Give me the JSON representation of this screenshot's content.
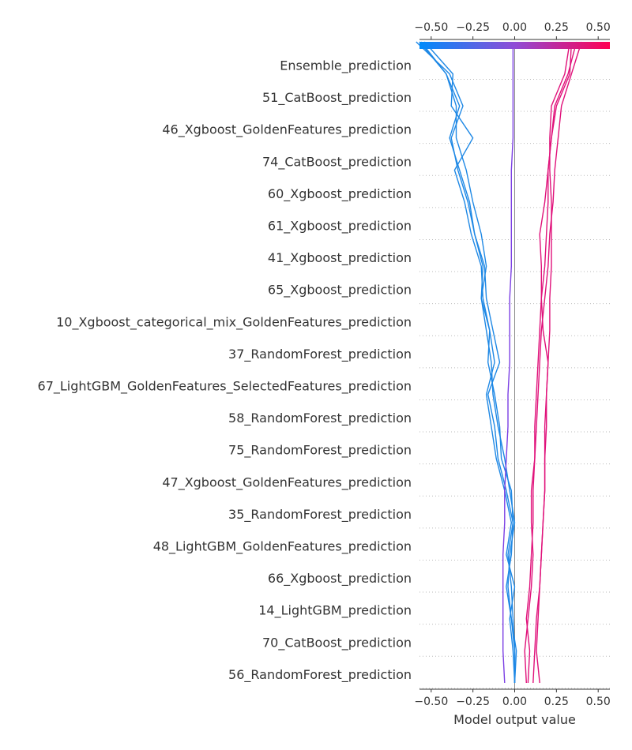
{
  "chart_data": {
    "type": "line",
    "subtype": "decision-plot",
    "xlabel": "Model output value",
    "xlim": [
      -0.57,
      0.57
    ],
    "ticks": [
      {
        "value": -0.5,
        "label": "−0.50"
      },
      {
        "value": -0.25,
        "label": "−0.25"
      },
      {
        "value": 0.0,
        "label": "0.00"
      },
      {
        "value": 0.25,
        "label": "0.25"
      },
      {
        "value": 0.5,
        "label": "0.50"
      }
    ],
    "base_value": 0.0,
    "colorbar": {
      "from": "#008bfb",
      "mid": "#8f4bd6",
      "to": "#ff0052"
    },
    "grid": "dotted horizontal",
    "features": [
      "Ensemble_prediction",
      "51_CatBoost_prediction",
      "46_Xgboost_GoldenFeatures_prediction",
      "74_CatBoost_prediction",
      "60_Xgboost_prediction",
      "61_Xgboost_prediction",
      "41_Xgboost_prediction",
      "65_Xgboost_prediction",
      "10_Xgboost_categorical_mix_GoldenFeatures_prediction",
      "37_RandomForest_prediction",
      "67_LightGBM_GoldenFeatures_SelectedFeatures_prediction",
      "58_RandomForest_prediction",
      "75_RandomForest_prediction",
      "47_Xgboost_GoldenFeatures_prediction",
      "35_RandomForest_prediction",
      "48_LightGBM_GoldenFeatures_prediction",
      "66_Xgboost_prediction",
      "14_LightGBM_prediction",
      "70_CatBoost_prediction",
      "56_RandomForest_prediction"
    ],
    "series": [
      {
        "color": "#1e88e5",
        "values": [
          0.0,
          0.01,
          -0.02,
          -0.05,
          -0.02,
          -0.01,
          -0.02,
          -0.08,
          -0.09,
          -0.12,
          -0.16,
          -0.15,
          -0.2,
          -0.17,
          -0.2,
          -0.25,
          -0.29,
          -0.35,
          -0.35,
          -0.41,
          -0.57
        ]
      },
      {
        "color": "#1e88e5",
        "values": [
          0.0,
          0.0,
          -0.02,
          -0.04,
          -0.03,
          0.0,
          -0.03,
          -0.06,
          -0.1,
          -0.13,
          -0.14,
          -0.17,
          -0.2,
          -0.19,
          -0.24,
          -0.27,
          -0.33,
          -0.39,
          -0.33,
          -0.41,
          -0.56
        ]
      },
      {
        "color": "#1e88e5",
        "values": [
          0.0,
          0.0,
          -0.01,
          -0.02,
          -0.04,
          -0.01,
          -0.05,
          -0.1,
          -0.12,
          -0.16,
          -0.09,
          -0.13,
          -0.17,
          -0.18,
          -0.24,
          -0.28,
          -0.34,
          -0.38,
          -0.31,
          -0.39,
          -0.59
        ]
      },
      {
        "color": "#1e88e5",
        "values": [
          0.0,
          -0.01,
          -0.03,
          0.0,
          -0.05,
          -0.02,
          -0.06,
          -0.11,
          -0.14,
          -0.17,
          -0.12,
          -0.15,
          -0.19,
          -0.2,
          -0.26,
          -0.3,
          -0.36,
          -0.25,
          -0.38,
          -0.37,
          -0.54
        ]
      },
      {
        "color": "#7b3fe4",
        "values": [
          -0.06,
          -0.07,
          -0.07,
          -0.07,
          -0.07,
          -0.06,
          -0.06,
          -0.05,
          -0.04,
          -0.04,
          -0.03,
          -0.03,
          -0.03,
          -0.02,
          -0.02,
          -0.02,
          -0.02,
          -0.01,
          -0.01,
          -0.01,
          -0.01
        ]
      },
      {
        "color": "#e0117a",
        "values": [
          0.07,
          0.06,
          0.08,
          0.1,
          0.11,
          0.1,
          0.1,
          0.12,
          0.12,
          0.13,
          0.14,
          0.15,
          0.16,
          0.18,
          0.19,
          0.2,
          0.2,
          0.22,
          0.24,
          0.32,
          0.37
        ]
      },
      {
        "color": "#e0117a",
        "values": [
          0.08,
          0.09,
          0.07,
          0.09,
          0.1,
          0.11,
          0.11,
          0.12,
          0.13,
          0.14,
          0.15,
          0.16,
          0.18,
          0.2,
          0.21,
          0.23,
          0.24,
          0.26,
          0.28,
          0.34,
          0.4
        ]
      },
      {
        "color": "#e0117a",
        "values": [
          0.11,
          0.12,
          0.13,
          0.15,
          0.16,
          0.17,
          0.18,
          0.18,
          0.18,
          0.19,
          0.2,
          0.17,
          0.16,
          0.16,
          0.15,
          0.18,
          0.2,
          0.22,
          0.25,
          0.33,
          0.34
        ]
      },
      {
        "color": "#e0117a",
        "values": [
          0.15,
          0.13,
          0.14,
          0.15,
          0.16,
          0.17,
          0.18,
          0.18,
          0.19,
          0.19,
          0.2,
          0.21,
          0.21,
          0.22,
          0.22,
          0.22,
          0.21,
          0.21,
          0.22,
          0.3,
          0.33
        ]
      }
    ]
  }
}
